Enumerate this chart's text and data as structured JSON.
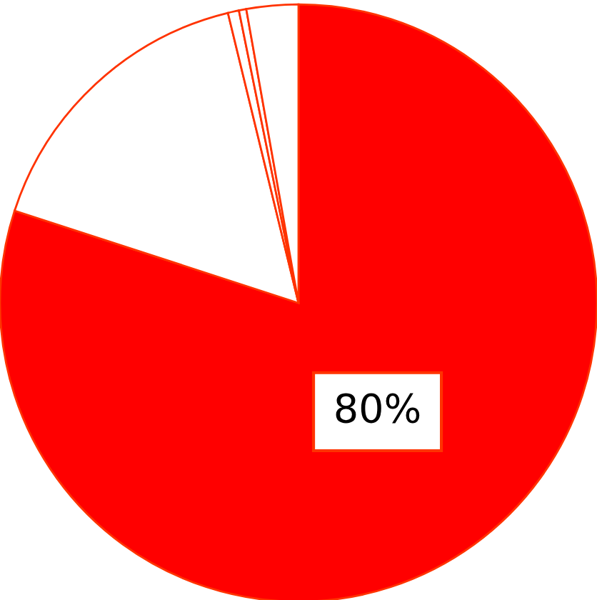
{
  "chart_data": {
    "type": "pie",
    "categories": [
      null,
      null,
      null,
      null,
      null
    ],
    "values": [
      80,
      16.2,
      0.6,
      0.4,
      2.8
    ],
    "colors": [
      "#ff0000",
      "#ffffff",
      "#ffffff",
      "#ffffff",
      "#ffffff"
    ],
    "value_labels": [
      "80%",
      null,
      null,
      null,
      null
    ]
  }
}
